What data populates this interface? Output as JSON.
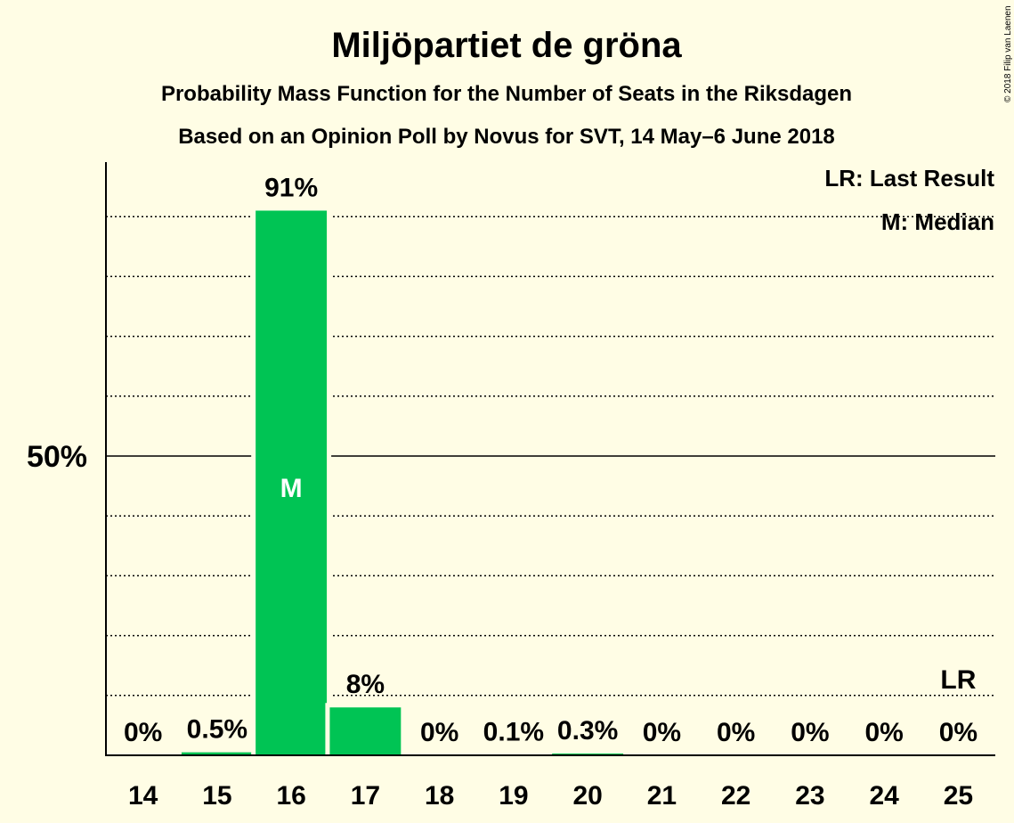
{
  "chart_data": {
    "type": "bar",
    "title": "Miljöpartiet de gröna",
    "subtitle": "Probability Mass Function for the Number of Seats in the Riksdagen",
    "subtitle2": "Based on an Opinion Poll by Novus for SVT, 14 May–6 June 2018",
    "copyright": "© 2018 Filip van Laenen",
    "categories": [
      "14",
      "15",
      "16",
      "17",
      "18",
      "19",
      "20",
      "21",
      "22",
      "23",
      "24",
      "25"
    ],
    "values": [
      0,
      0.5,
      91,
      8,
      0,
      0.1,
      0.3,
      0,
      0,
      0,
      0,
      0
    ],
    "value_labels": [
      "0%",
      "0.5%",
      "91%",
      "8%",
      "0%",
      "0.1%",
      "0.3%",
      "0%",
      "0%",
      "0%",
      "0%",
      "0%"
    ],
    "ylim": [
      0,
      100
    ],
    "y_tick_label": "50%",
    "y_tick_value": 50,
    "gridlines": [
      10,
      20,
      30,
      40,
      60,
      70,
      80,
      90
    ],
    "median_category": "16",
    "median_marker": "M",
    "last_result_category": "25",
    "last_result_marker": "LR",
    "legend": {
      "lr": "LR: Last Result",
      "m": "M: Median"
    },
    "bar_color": "#00C454",
    "background": "#FFFDE5"
  }
}
